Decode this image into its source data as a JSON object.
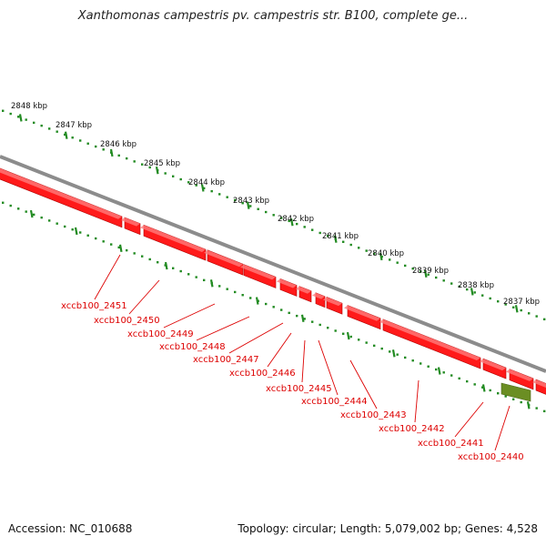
{
  "title": "Xanthomonas campestris pv. campestris str. B100, complete ge...",
  "footer": {
    "accession": "Accession: NC_010688",
    "summary": "Topology: circular; Length: 5,079,002 bp; Genes: 4,528"
  },
  "colors": {
    "gene": "#ff1a1a",
    "gene_edge": "#b30000",
    "other_feature": "#6b8e23",
    "backbone": "#8c8c8c",
    "tick": "#228b22",
    "label": "#dd0000"
  },
  "scale": {
    "unit": "kbp",
    "ticks": [
      {
        "value": 2848,
        "label": "2848 kbp"
      },
      {
        "value": 2847,
        "label": "2847 kbp"
      },
      {
        "value": 2846,
        "label": "2846 kbp"
      },
      {
        "value": 2845,
        "label": "2845 kbp"
      },
      {
        "value": 2844,
        "label": "2844 kbp"
      },
      {
        "value": 2843,
        "label": "2843 kbp"
      },
      {
        "value": 2842,
        "label": "2842 kbp"
      },
      {
        "value": 2841,
        "label": "2841 kbp"
      },
      {
        "value": 2840,
        "label": "2840 kbp"
      },
      {
        "value": 2839,
        "label": "2839 kbp"
      },
      {
        "value": 2838,
        "label": "2838 kbp"
      },
      {
        "value": 2837,
        "label": "2837 kbp"
      }
    ]
  },
  "genes": [
    {
      "name": "xccb100_2451",
      "type": "gene"
    },
    {
      "name": "xccb100_2450",
      "type": "gene"
    },
    {
      "name": "xccb100_2449",
      "type": "gene"
    },
    {
      "name": "xccb100_2448",
      "type": "gene"
    },
    {
      "name": "xccb100_2447",
      "type": "gene"
    },
    {
      "name": "xccb100_2446",
      "type": "gene"
    },
    {
      "name": "xccb100_2445",
      "type": "gene"
    },
    {
      "name": "xccb100_2444",
      "type": "gene"
    },
    {
      "name": "xccb100_2443",
      "type": "gene"
    },
    {
      "name": "xccb100_2442",
      "type": "gene"
    },
    {
      "name": "xccb100_2441",
      "type": "gene"
    },
    {
      "name": "xccb100_2440",
      "type": "other"
    }
  ]
}
